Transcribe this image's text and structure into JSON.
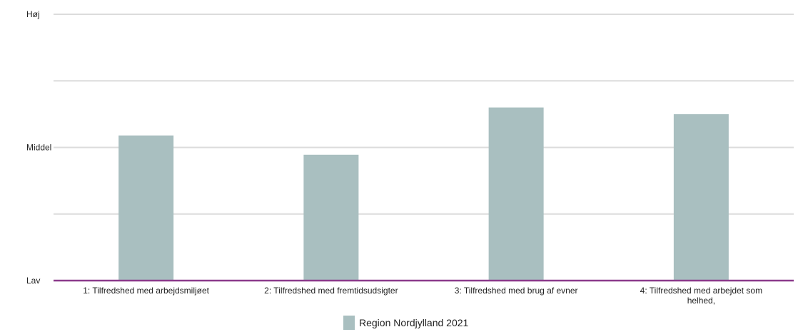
{
  "chart_data": {
    "type": "bar",
    "y_scale": [
      "Lav",
      "Middel",
      "Høj"
    ],
    "ylim": [
      0,
      4
    ],
    "y_gridlines": [
      0,
      1,
      2,
      3,
      4
    ],
    "y_tick_labels": [
      {
        "value": 0,
        "label": "Lav"
      },
      {
        "value": 2,
        "label": "Middel"
      },
      {
        "value": 4,
        "label": "Høj"
      }
    ],
    "categories": [
      "1: Tilfredshed med arbejdsmiljøet",
      "2: Tilfredshed med fremtidsudsigter",
      "3: Tilfredshed med brug af evner",
      "4: Tilfredshed med arbejdet som helhed,"
    ],
    "category_lines": [
      [
        "1: Tilfredshed med arbejdsmiljøet"
      ],
      [
        "2: Tilfredshed med fremtidsudsigter"
      ],
      [
        "3: Tilfredshed med brug af evner"
      ],
      [
        "4: Tilfredshed med arbejdet som",
        "helhed,"
      ]
    ],
    "series": [
      {
        "name": "Region Nordjylland 2021",
        "color": "#a9bfc0",
        "values": [
          2.18,
          1.89,
          2.6,
          2.5
        ]
      }
    ],
    "legend_position": "bottom-center",
    "grid": true,
    "colors": {
      "grid": "#dcdcdc",
      "baseline": "#8b3a8b",
      "bar": "#a9bfc0"
    },
    "title": "",
    "xlabel": "",
    "ylabel": ""
  }
}
